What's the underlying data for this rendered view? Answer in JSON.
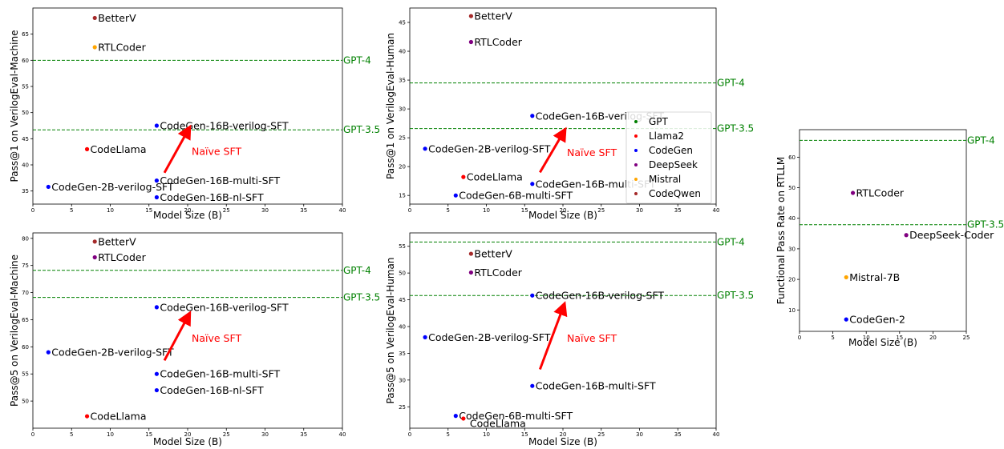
{
  "colors": {
    "GPT": "#008000",
    "Llama2": "#ff0000",
    "CodeGen": "#0000ff",
    "DeepSeek": "#800080",
    "Mistral": "#ffa500",
    "CodeQwen": "#a52a2a",
    "reference": "#008000",
    "annotation": "#ff0000"
  },
  "legend": {
    "placement": "in second panel, right side",
    "entries": [
      {
        "label": "GPT",
        "color": "#008000"
      },
      {
        "label": "Llama2",
        "color": "#ff0000"
      },
      {
        "label": "CodeGen",
        "color": "#0000ff"
      },
      {
        "label": "DeepSeek",
        "color": "#800080"
      },
      {
        "label": "Mistral",
        "color": "#ffa500"
      },
      {
        "label": "CodeQwen",
        "color": "#a52a2a"
      }
    ]
  },
  "chart_data": [
    {
      "type": "scatter",
      "xlabel": "Model Size (B)",
      "ylabel": "Pass@1 on VerilogEval-Machine",
      "xlim": [
        0,
        40
      ],
      "ylim": [
        32.5,
        70
      ],
      "xticks": [
        0,
        5,
        10,
        15,
        20,
        25,
        30,
        35,
        40
      ],
      "yticks": [
        35,
        40,
        45,
        50,
        55,
        60,
        65
      ],
      "reference_lines": [
        {
          "label": "GPT-4",
          "y": 60.0
        },
        {
          "label": "GPT-3.5",
          "y": 46.7
        }
      ],
      "points": [
        {
          "label": "BetterV",
          "x": 8,
          "y": 68.1,
          "family": "CodeQwen"
        },
        {
          "label": "RTLCoder",
          "x": 8,
          "y": 62.5,
          "family": "Mistral"
        },
        {
          "label": "CodeGen-16B-verilog-SFT",
          "x": 16,
          "y": 47.5,
          "family": "CodeGen"
        },
        {
          "label": "CodeLlama",
          "x": 7,
          "y": 43.0,
          "family": "Llama2"
        },
        {
          "label": "CodeGen-16B-multi-SFT",
          "x": 16,
          "y": 37.0,
          "family": "CodeGen"
        },
        {
          "label": "CodeGen-2B-verilog-SFT",
          "x": 2,
          "y": 35.8,
          "family": "CodeGen"
        },
        {
          "label": "CodeGen-16B-nl-SFT",
          "x": 16,
          "y": 33.8,
          "family": "CodeGen"
        }
      ],
      "annotation": {
        "text": "Naïve SFT",
        "from": [
          17,
          38.5
        ],
        "to": [
          20,
          46.5
        ]
      }
    },
    {
      "type": "scatter",
      "xlabel": "Model Size (B)",
      "ylabel": "Pass@1 on VerilogEval-Human",
      "xlim": [
        0,
        40
      ],
      "ylim": [
        13.5,
        47.5
      ],
      "xticks": [
        0,
        5,
        10,
        15,
        20,
        25,
        30,
        35,
        40
      ],
      "yticks": [
        15,
        20,
        25,
        30,
        35,
        40,
        45
      ],
      "reference_lines": [
        {
          "label": "GPT-4",
          "y": 34.5
        },
        {
          "label": "GPT-3.5",
          "y": 26.6
        }
      ],
      "points": [
        {
          "label": "BetterV",
          "x": 8,
          "y": 46.1,
          "family": "CodeQwen"
        },
        {
          "label": "RTLCoder",
          "x": 8,
          "y": 41.6,
          "family": "DeepSeek"
        },
        {
          "label": "CodeGen-16B-verilog-SFT",
          "x": 16,
          "y": 28.8,
          "family": "CodeGen"
        },
        {
          "label": "CodeGen-2B-verilog-SFT",
          "x": 2,
          "y": 23.1,
          "family": "CodeGen"
        },
        {
          "label": "CodeLlama",
          "x": 7,
          "y": 18.2,
          "family": "Llama2"
        },
        {
          "label": "CodeGen-16B-multi-SFT",
          "x": 16,
          "y": 17.0,
          "family": "CodeGen"
        },
        {
          "label": "CodeGen-6B-multi-SFT",
          "x": 6,
          "y": 15.0,
          "family": "CodeGen"
        }
      ],
      "annotation": {
        "text": "Naïve SFT",
        "from": [
          17,
          19.0
        ],
        "to": [
          20,
          25.8
        ]
      }
    },
    {
      "type": "scatter",
      "xlabel": "",
      "ylabel": "Functional Pass Rate on RTLLM",
      "xlim": [
        0,
        25
      ],
      "ylim": [
        3,
        69
      ],
      "xticks": [
        0,
        5,
        10,
        15,
        20,
        25
      ],
      "yticks": [
        10,
        20,
        30,
        40,
        50,
        60
      ],
      "reference_lines": [
        {
          "label": "GPT-4",
          "y": 65.5
        },
        {
          "label": "GPT-3.5",
          "y": 37.9
        }
      ],
      "points": [
        {
          "label": "RTLCoder",
          "x": 8,
          "y": 48.3,
          "family": "DeepSeek"
        },
        {
          "label": "DeepSeek-Coder",
          "x": 16,
          "y": 34.5,
          "family": "DeepSeek"
        },
        {
          "label": "Mistral-7B",
          "x": 7,
          "y": 20.7,
          "family": "Mistral"
        },
        {
          "label": "CodeGen-2",
          "x": 7,
          "y": 6.9,
          "family": "CodeGen"
        }
      ]
    },
    {
      "type": "scatter",
      "xlabel": "Model Size (B)",
      "ylabel": "Pass@5 on VerilogEval-Machine",
      "xlim": [
        0,
        40
      ],
      "ylim": [
        45,
        81
      ],
      "xticks": [
        0,
        5,
        10,
        15,
        20,
        25,
        30,
        35,
        40
      ],
      "yticks": [
        50,
        55,
        60,
        65,
        70,
        75,
        80
      ],
      "reference_lines": [
        {
          "label": "GPT-4",
          "y": 74.1
        },
        {
          "label": "GPT-3.5",
          "y": 69.1
        }
      ],
      "points": [
        {
          "label": "BetterV",
          "x": 8,
          "y": 79.4,
          "family": "CodeQwen"
        },
        {
          "label": "RTLCoder",
          "x": 8,
          "y": 76.5,
          "family": "DeepSeek"
        },
        {
          "label": "CodeGen-16B-verilog-SFT",
          "x": 16,
          "y": 67.3,
          "family": "CodeGen"
        },
        {
          "label": "CodeGen-2B-verilog-SFT",
          "x": 2,
          "y": 59.0,
          "family": "CodeGen"
        },
        {
          "label": "CodeGen-16B-multi-SFT",
          "x": 16,
          "y": 55.0,
          "family": "CodeGen"
        },
        {
          "label": "CodeGen-16B-nl-SFT",
          "x": 16,
          "y": 52.0,
          "family": "CodeGen"
        },
        {
          "label": "CodeLlama",
          "x": 7,
          "y": 47.2,
          "family": "Llama2"
        }
      ],
      "annotation": {
        "text": "Naïve SFT",
        "from": [
          17,
          57.5
        ],
        "to": [
          20,
          65.5
        ]
      }
    },
    {
      "type": "scatter",
      "xlabel": "Model Size (B)",
      "ylabel": "Pass@5 on VerilogEval-Human",
      "xlim": [
        0,
        40
      ],
      "ylim": [
        21,
        57.5
      ],
      "xticks": [
        0,
        5,
        10,
        15,
        20,
        25,
        30,
        35,
        40
      ],
      "yticks": [
        25,
        30,
        35,
        40,
        45,
        50,
        55
      ],
      "reference_lines": [
        {
          "label": "GPT-4",
          "y": 55.8
        },
        {
          "label": "GPT-3.5",
          "y": 45.8
        }
      ],
      "points": [
        {
          "label": "BetterV",
          "x": 8,
          "y": 53.6,
          "family": "CodeQwen"
        },
        {
          "label": "RTLCoder",
          "x": 8,
          "y": 50.1,
          "family": "DeepSeek"
        },
        {
          "label": "CodeGen-16B-verilog-SFT",
          "x": 16,
          "y": 45.8,
          "family": "CodeGen"
        },
        {
          "label": "CodeGen-2B-verilog-SFT",
          "x": 2,
          "y": 38.0,
          "family": "CodeGen"
        },
        {
          "label": "CodeGen-16B-multi-SFT",
          "x": 16,
          "y": 28.9,
          "family": "CodeGen"
        },
        {
          "label": "CodeGen-6B-multi-SFT",
          "x": 6,
          "y": 23.3,
          "family": "CodeGen"
        },
        {
          "label": "CodeLlama",
          "x": 7,
          "y": 22.8,
          "family": "Llama2"
        }
      ],
      "annotation": {
        "text": "Naïve SFT",
        "from": [
          17,
          32.0
        ],
        "to": [
          20,
          43.5
        ]
      }
    }
  ]
}
